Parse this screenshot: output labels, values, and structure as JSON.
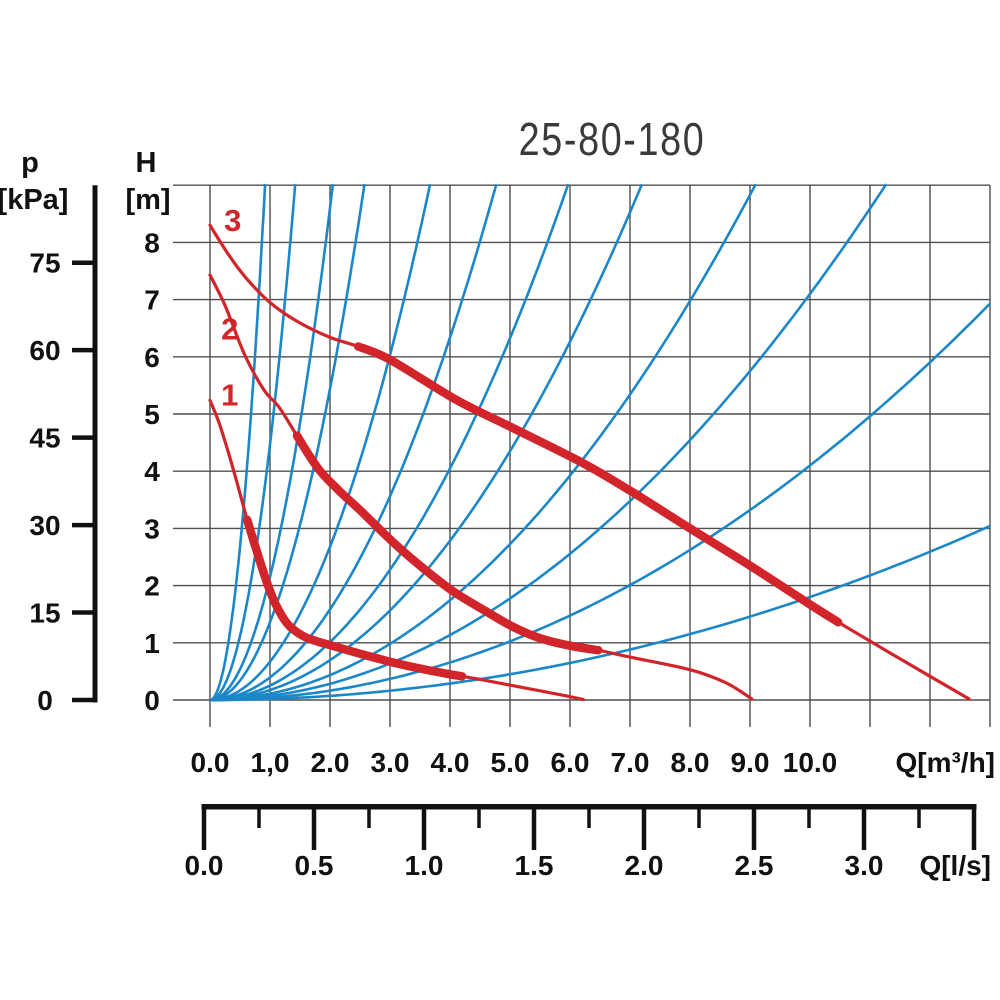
{
  "title": "25-80-180",
  "pressure_axis": {
    "name": "p",
    "unit": "[kPa]",
    "tick_labels": [
      "75",
      "60",
      "45",
      "30",
      "15",
      "0"
    ],
    "tick_values": [
      75,
      60,
      45,
      30,
      15,
      0
    ]
  },
  "head_axis": {
    "name": "H",
    "unit": "[m]",
    "tick_labels": [
      "8",
      "7",
      "6",
      "5",
      "4",
      "3",
      "2",
      "1",
      "0"
    ],
    "tick_values": [
      8,
      7,
      6,
      5,
      4,
      3,
      2,
      1,
      0
    ]
  },
  "flow_axis_m3h": {
    "unit_label": "Q[m³/h]",
    "tick_labels": [
      "0.0",
      "1,0",
      "2.0",
      "3.0",
      "4.0",
      "5.0",
      "6.0",
      "7.0",
      "8.0",
      "9.0",
      "10.0"
    ],
    "tick_values": [
      0,
      1,
      2,
      3,
      4,
      5,
      6,
      7,
      8,
      9,
      10
    ]
  },
  "flow_axis_ls": {
    "unit_label": "Q[l/s]",
    "tick_labels": [
      "0.0",
      "0.5",
      "1.0",
      "1.5",
      "2.0",
      "2.5",
      "3.0"
    ],
    "tick_values": [
      0,
      0.5,
      1.0,
      1.5,
      2.0,
      2.5,
      3.0
    ],
    "minor_tick_step": 0.25,
    "scale_end_value": 3.5
  },
  "chart_data": {
    "type": "line",
    "title": "25-80-180",
    "xlabel": "Q[m³/h]",
    "ylabel": "H [m]",
    "x_range_m3h": [
      0,
      13
    ],
    "y_range_m": [
      0,
      9
    ],
    "grid": true,
    "secondary_y_axis": {
      "label": "p [kPa]",
      "ticks": [
        0,
        15,
        30,
        45,
        60,
        75
      ],
      "kpa_per_m": 9.81
    },
    "secondary_x_axis": {
      "label": "Q[l/s]",
      "ticks": [
        0,
        0.5,
        1.0,
        1.5,
        2.0,
        2.5,
        3.0
      ]
    },
    "pump_curves": [
      {
        "name": "speed-1",
        "label": "1",
        "label_pos_qh": [
          0.33,
          5.32
        ],
        "max_head_m": 5.24,
        "max_flow_m3h": 6.22,
        "thick_segment_q": [
          0.62,
          4.2
        ],
        "points": [
          [
            0,
            5.24
          ],
          [
            0.15,
            4.85
          ],
          [
            0.3,
            4.35
          ],
          [
            0.45,
            3.8
          ],
          [
            0.62,
            3.15
          ],
          [
            0.78,
            2.6
          ],
          [
            0.95,
            2.05
          ],
          [
            1.1,
            1.66
          ],
          [
            1.3,
            1.32
          ],
          [
            1.55,
            1.12
          ],
          [
            1.8,
            1.02
          ],
          [
            2.0,
            0.96
          ],
          [
            2.5,
            0.81
          ],
          [
            3.0,
            0.67
          ],
          [
            3.5,
            0.55
          ],
          [
            4.0,
            0.45
          ],
          [
            4.5,
            0.36
          ],
          [
            5.0,
            0.26
          ],
          [
            5.5,
            0.16
          ],
          [
            5.9,
            0.08
          ],
          [
            6.22,
            0.01
          ]
        ]
      },
      {
        "name": "speed-2",
        "label": "2",
        "label_pos_qh": [
          0.33,
          6.48
        ],
        "max_head_m": 7.43,
        "max_flow_m3h": 9.03,
        "thick_segment_q": [
          1.45,
          6.47
        ],
        "points": [
          [
            0,
            7.43
          ],
          [
            0.25,
            6.9
          ],
          [
            0.58,
            6.03
          ],
          [
            0.9,
            5.42
          ],
          [
            1.15,
            5.12
          ],
          [
            1.45,
            4.62
          ],
          [
            1.8,
            4.05
          ],
          [
            2.15,
            3.66
          ],
          [
            2.5,
            3.32
          ],
          [
            3.05,
            2.76
          ],
          [
            3.5,
            2.35
          ],
          [
            4.05,
            1.9
          ],
          [
            4.6,
            1.55
          ],
          [
            5.05,
            1.28
          ],
          [
            5.5,
            1.08
          ],
          [
            6.0,
            0.95
          ],
          [
            6.47,
            0.87
          ],
          [
            7.0,
            0.75
          ],
          [
            8.0,
            0.53
          ],
          [
            8.6,
            0.3
          ],
          [
            9.03,
            0.02
          ]
        ]
      },
      {
        "name": "speed-3",
        "label": "3",
        "label_pos_qh": [
          0.38,
          8.37
        ],
        "max_head_m": 8.3,
        "max_flow_m3h": 12.65,
        "thick_segment_q": [
          2.47,
          10.47
        ],
        "points": [
          [
            0,
            8.3
          ],
          [
            0.3,
            7.8
          ],
          [
            0.6,
            7.38
          ],
          [
            1.0,
            6.95
          ],
          [
            1.45,
            6.62
          ],
          [
            2.0,
            6.34
          ],
          [
            2.47,
            6.18
          ],
          [
            3.0,
            5.95
          ],
          [
            4.1,
            5.25
          ],
          [
            5.0,
            4.78
          ],
          [
            6.2,
            4.15
          ],
          [
            7.0,
            3.66
          ],
          [
            8.0,
            3.0
          ],
          [
            9.0,
            2.35
          ],
          [
            10.0,
            1.67
          ],
          [
            10.47,
            1.36
          ],
          [
            11.5,
            0.72
          ],
          [
            12.65,
            0.02
          ]
        ]
      }
    ],
    "system_curves": {
      "model": "H = k * Q^2  (Q in m³/h, H in m)",
      "k_values": [
        10.7,
        4.47,
        2.15,
        1.36,
        0.67,
        0.396,
        0.253,
        0.174,
        0.109,
        0.071,
        0.041,
        0.018
      ]
    },
    "colors": {
      "pump_curve": "#d1252b",
      "system_curve": "#1b87c9",
      "grid": "#4f4f4f",
      "axis": "#111111",
      "text": "#111111",
      "title_text": "#3a3a3a"
    }
  }
}
